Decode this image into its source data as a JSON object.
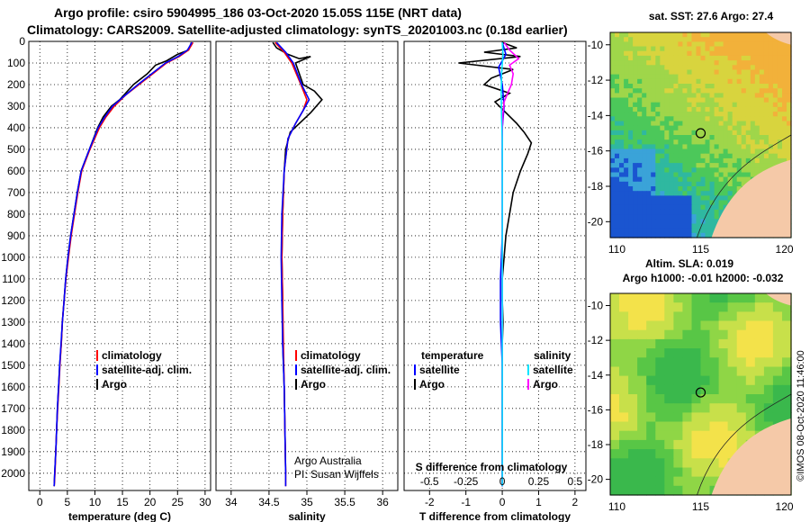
{
  "header": {
    "line1": "Argo profile: csiro 5904995_186 03-Oct-2020 15.05S 115E (NRT data)",
    "line2": "Climatology: CARS2009. Satellite-adjusted climatology: synTS_20201003.nc (0.18d earlier)"
  },
  "colors": {
    "climatology": "#ff0000",
    "satellite_adj": "#0000ff",
    "argo": "#000000",
    "t_satellite": "#00e5ff",
    "s_argo": "#ff00ff"
  },
  "chart_data": [
    {
      "type": "line",
      "id": "temperature",
      "xlabel": "temperature (deg C)",
      "xlim": [
        -2,
        31
      ],
      "xticks": [
        0,
        5,
        10,
        15,
        20,
        25,
        30
      ],
      "ylim": [
        0,
        2080
      ],
      "yticks": [
        0,
        100,
        200,
        300,
        400,
        500,
        600,
        700,
        800,
        900,
        1000,
        1100,
        1200,
        1300,
        1400,
        1500,
        1600,
        1700,
        1800,
        1900,
        2000
      ],
      "legend": [
        "climatology",
        "satellite-adj. clim.",
        "Argo"
      ],
      "series": [
        {
          "name": "Argo",
          "color": "#000000",
          "points": [
            [
              27.5,
              5
            ],
            [
              27.3,
              20
            ],
            [
              27,
              40
            ],
            [
              25,
              60
            ],
            [
              23,
              90
            ],
            [
              21,
              110
            ],
            [
              19.5,
              150
            ],
            [
              17,
              200
            ],
            [
              14.5,
              270
            ],
            [
              13,
              300
            ],
            [
              11.5,
              350
            ],
            [
              10.5,
              400
            ],
            [
              9,
              500
            ],
            [
              7.5,
              600
            ],
            [
              6.8,
              700
            ],
            [
              6.2,
              800
            ],
            [
              5.6,
              900
            ],
            [
              5.1,
              1000
            ],
            [
              4.7,
              1100
            ],
            [
              4.4,
              1200
            ],
            [
              4.1,
              1300
            ],
            [
              3.9,
              1400
            ],
            [
              3.6,
              1500
            ],
            [
              3.4,
              1600
            ],
            [
              3.2,
              1700
            ],
            [
              3.05,
              1800
            ],
            [
              2.9,
              1900
            ],
            [
              2.7,
              2000
            ],
            [
              2.6,
              2060
            ]
          ]
        },
        {
          "name": "climatology",
          "color": "#ff0000",
          "points": [
            [
              27.8,
              5
            ],
            [
              27,
              40
            ],
            [
              25.3,
              70
            ],
            [
              23,
              100
            ],
            [
              20.5,
              150
            ],
            [
              18,
              200
            ],
            [
              15.5,
              250
            ],
            [
              13.5,
              300
            ],
            [
              12,
              350
            ],
            [
              10.8,
              400
            ],
            [
              9.1,
              500
            ],
            [
              7.6,
              600
            ],
            [
              6.9,
              700
            ],
            [
              6.3,
              800
            ],
            [
              5.7,
              900
            ],
            [
              5.2,
              1000
            ],
            [
              4.75,
              1100
            ],
            [
              4.4,
              1200
            ],
            [
              4.1,
              1300
            ],
            [
              3.9,
              1400
            ],
            [
              3.65,
              1500
            ],
            [
              3.45,
              1600
            ],
            [
              3.25,
              1700
            ],
            [
              3.05,
              1800
            ],
            [
              2.9,
              1900
            ],
            [
              2.75,
              2000
            ],
            [
              2.6,
              2060
            ]
          ]
        },
        {
          "name": "satellite-adj. clim.",
          "color": "#0000ff",
          "points": [
            [
              27.6,
              5
            ],
            [
              26.8,
              40
            ],
            [
              25.1,
              70
            ],
            [
              22.8,
              100
            ],
            [
              20.3,
              150
            ],
            [
              17.8,
              200
            ],
            [
              15,
              260
            ],
            [
              13.2,
              300
            ],
            [
              11.8,
              350
            ],
            [
              10.6,
              400
            ],
            [
              9,
              500
            ],
            [
              7.5,
              600
            ],
            [
              6.8,
              700
            ],
            [
              6.2,
              800
            ],
            [
              5.6,
              900
            ],
            [
              5.1,
              1000
            ],
            [
              4.7,
              1100
            ],
            [
              4.4,
              1200
            ],
            [
              4.1,
              1300
            ],
            [
              3.85,
              1400
            ],
            [
              3.6,
              1500
            ],
            [
              3.4,
              1600
            ],
            [
              3.2,
              1700
            ],
            [
              3.05,
              1800
            ],
            [
              2.9,
              1900
            ],
            [
              2.7,
              2000
            ],
            [
              2.6,
              2060
            ]
          ]
        }
      ]
    },
    {
      "type": "line",
      "id": "salinity",
      "xlabel": "salinity",
      "xlim": [
        33.8,
        36.2
      ],
      "xticks": [
        34,
        34.5,
        35,
        35.5,
        36
      ],
      "ylim": [
        0,
        2080
      ],
      "legend": [
        "climatology",
        "satellite-adj. clim.",
        "Argo"
      ],
      "annotation": [
        "Argo Australia",
        "PI: Susan Wijffels"
      ],
      "series": [
        {
          "name": "Argo",
          "color": "#000000",
          "points": [
            [
              34.55,
              5
            ],
            [
              34.6,
              30
            ],
            [
              34.75,
              60
            ],
            [
              34.9,
              80
            ],
            [
              35.05,
              70
            ],
            [
              34.85,
              100
            ],
            [
              34.9,
              150
            ],
            [
              34.95,
              200
            ],
            [
              35.1,
              230
            ],
            [
              35.2,
              270
            ],
            [
              35.05,
              330
            ],
            [
              34.9,
              380
            ],
            [
              34.78,
              420
            ],
            [
              34.72,
              500
            ],
            [
              34.7,
              600
            ],
            [
              34.68,
              800
            ],
            [
              34.67,
              1000
            ],
            [
              34.68,
              1200
            ],
            [
              34.68,
              1400
            ],
            [
              34.7,
              1600
            ],
            [
              34.71,
              1800
            ],
            [
              34.72,
              2000
            ]
          ]
        },
        {
          "name": "climatology",
          "color": "#ff0000",
          "points": [
            [
              34.58,
              5
            ],
            [
              34.7,
              50
            ],
            [
              34.8,
              100
            ],
            [
              34.92,
              200
            ],
            [
              35,
              270
            ],
            [
              34.95,
              320
            ],
            [
              34.85,
              380
            ],
            [
              34.75,
              450
            ],
            [
              34.7,
              600
            ],
            [
              34.68,
              800
            ],
            [
              34.67,
              1000
            ],
            [
              34.68,
              1200
            ],
            [
              34.69,
              1400
            ],
            [
              34.7,
              1600
            ],
            [
              34.71,
              1800
            ],
            [
              34.72,
              2000
            ],
            [
              34.72,
              2060
            ]
          ]
        },
        {
          "name": "satellite-adj. clim.",
          "color": "#0000ff",
          "points": [
            [
              34.6,
              5
            ],
            [
              34.72,
              50
            ],
            [
              34.82,
              100
            ],
            [
              34.93,
              200
            ],
            [
              35.03,
              270
            ],
            [
              34.95,
              320
            ],
            [
              34.85,
              380
            ],
            [
              34.75,
              450
            ],
            [
              34.7,
              600
            ],
            [
              34.67,
              800
            ],
            [
              34.66,
              1000
            ],
            [
              34.67,
              1200
            ],
            [
              34.68,
              1400
            ],
            [
              34.7,
              1600
            ],
            [
              34.71,
              1800
            ],
            [
              34.72,
              2000
            ],
            [
              34.72,
              2060
            ]
          ]
        }
      ]
    },
    {
      "type": "line",
      "id": "difference",
      "xlabel": "T difference from climatology",
      "xlabel_top": "S difference from climatology",
      "xlim": [
        -2.7,
        2.3
      ],
      "xticks": [
        -2,
        -1,
        0,
        1,
        2
      ],
      "xticks_top": [
        -0.5,
        -0.25,
        0,
        0.25,
        0.5
      ],
      "xlim_top": [
        -0.675,
        0.575
      ],
      "ylim": [
        0,
        2080
      ],
      "legend_left_title": "temperature",
      "legend_right_title": "salinity",
      "legend_left": [
        "satellite",
        "Argo"
      ],
      "legend_right": [
        "satellite",
        "Argo"
      ],
      "series": [
        {
          "name": "T Argo",
          "color": "#000000",
          "points": [
            [
              0,
              5
            ],
            [
              0.4,
              30
            ],
            [
              -0.5,
              50
            ],
            [
              0.5,
              70
            ],
            [
              -1.2,
              100
            ],
            [
              0.3,
              130
            ],
            [
              -0.3,
              170
            ],
            [
              -0.5,
              200
            ],
            [
              0.2,
              240
            ],
            [
              -0.2,
              280
            ],
            [
              0.1,
              330
            ],
            [
              0.4,
              380
            ],
            [
              0.6,
              420
            ],
            [
              0.8,
              470
            ],
            [
              0.7,
              520
            ],
            [
              0.5,
              600
            ],
            [
              0.3,
              700
            ],
            [
              0.2,
              800
            ],
            [
              0.1,
              900
            ],
            [
              0.05,
              1000
            ],
            [
              0,
              1100
            ],
            [
              0,
              1200
            ],
            [
              0.02,
              1300
            ],
            [
              0,
              1400
            ],
            [
              0,
              1500
            ],
            [
              0,
              1600
            ],
            [
              0,
              1700
            ],
            [
              0,
              1800
            ],
            [
              0,
              1900
            ],
            [
              0,
              2000
            ],
            [
              0,
              2060
            ]
          ]
        },
        {
          "name": "T satellite",
          "color": "#0000ff",
          "points": [
            [
              0,
              5
            ],
            [
              0.1,
              60
            ],
            [
              -0.1,
              120
            ],
            [
              0,
              200
            ],
            [
              0.05,
              300
            ],
            [
              0,
              400
            ],
            [
              0,
              600
            ],
            [
              0,
              900
            ],
            [
              -0.05,
              1100
            ],
            [
              -0.05,
              1300
            ],
            [
              0,
              1500
            ],
            [
              0,
              1700
            ],
            [
              0,
              1900
            ],
            [
              0,
              2060
            ]
          ]
        },
        {
          "name": "S Argo",
          "color": "#ff00ff",
          "points": [
            [
              0.05,
              5
            ],
            [
              0.2,
              40
            ],
            [
              0.45,
              80
            ],
            [
              0.2,
              110
            ],
            [
              0.3,
              150
            ],
            [
              0.25,
              200
            ],
            [
              0.15,
              240
            ],
            [
              0.05,
              280
            ],
            [
              0.02,
              330
            ],
            [
              0,
              400
            ],
            [
              0,
              500
            ],
            [
              0,
              700
            ],
            [
              0,
              900
            ],
            [
              0,
              1100
            ],
            [
              0,
              1300
            ],
            [
              0,
              1500
            ],
            [
              0,
              1700
            ],
            [
              0,
              1900
            ],
            [
              0,
              2060
            ]
          ]
        },
        {
          "name": "S satellite",
          "color": "#00e5ff",
          "points": [
            [
              0,
              5
            ],
            [
              0.02,
              60
            ],
            [
              -0.02,
              150
            ],
            [
              -0.03,
              250
            ],
            [
              -0.02,
              350
            ],
            [
              0,
              450
            ],
            [
              0,
              600
            ],
            [
              0,
              800
            ],
            [
              0,
              1000
            ],
            [
              0,
              1200
            ],
            [
              0,
              1400
            ],
            [
              0,
              1600
            ],
            [
              0,
              1800
            ],
            [
              0,
              2000
            ],
            [
              0,
              2060
            ]
          ]
        }
      ]
    },
    {
      "type": "heatmap",
      "id": "sst_map",
      "title": "sat. SST: 27.6 Argo: 27.4",
      "xticks": [
        110,
        115,
        120
      ],
      "yticks": [
        -10,
        -12,
        -14,
        -16,
        -18,
        -20
      ],
      "marker": [
        115,
        -15
      ]
    },
    {
      "type": "heatmap",
      "id": "sla_map",
      "title_line1": "Altim. SLA: 0.019",
      "title_line2": "Argo h1000: -0.01 h2000: -0.032",
      "xticks": [
        110,
        115,
        120
      ],
      "yticks": [
        -10,
        -12,
        -14,
        -16,
        -18,
        -20
      ],
      "marker": [
        115,
        -15
      ]
    }
  ],
  "side_text": "©IMOS 08-Oct-2020 11:46:00"
}
